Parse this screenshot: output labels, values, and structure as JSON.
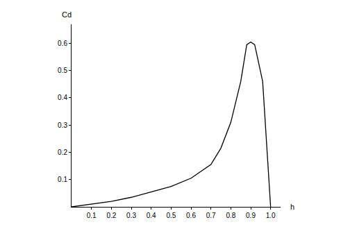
{
  "chart_data": {
    "type": "line",
    "x_label": "h",
    "y_label": "Cd",
    "x": [
      0,
      0.1,
      0.2,
      0.3,
      0.4,
      0.5,
      0.6,
      0.7,
      0.75,
      0.8,
      0.85,
      0.88,
      0.9,
      0.92,
      0.96,
      1.0
    ],
    "values": [
      0,
      0.01,
      0.02,
      0.035,
      0.055,
      0.075,
      0.105,
      0.155,
      0.215,
      0.31,
      0.46,
      0.595,
      0.605,
      0.595,
      0.46,
      0
    ],
    "color": "#000000",
    "xlim": [
      0,
      1.05
    ],
    "xticks": [
      0.1,
      0.2,
      0.3,
      0.4,
      0.5,
      0.6,
      0.7,
      0.8,
      0.9,
      {
        "value": 1,
        "label": "1.0"
      }
    ],
    "ylim": [
      0,
      0.67
    ],
    "yticks": [
      0.1,
      0.2,
      0.3,
      0.4,
      0.5,
      0.6
    ],
    "grid": false
  }
}
